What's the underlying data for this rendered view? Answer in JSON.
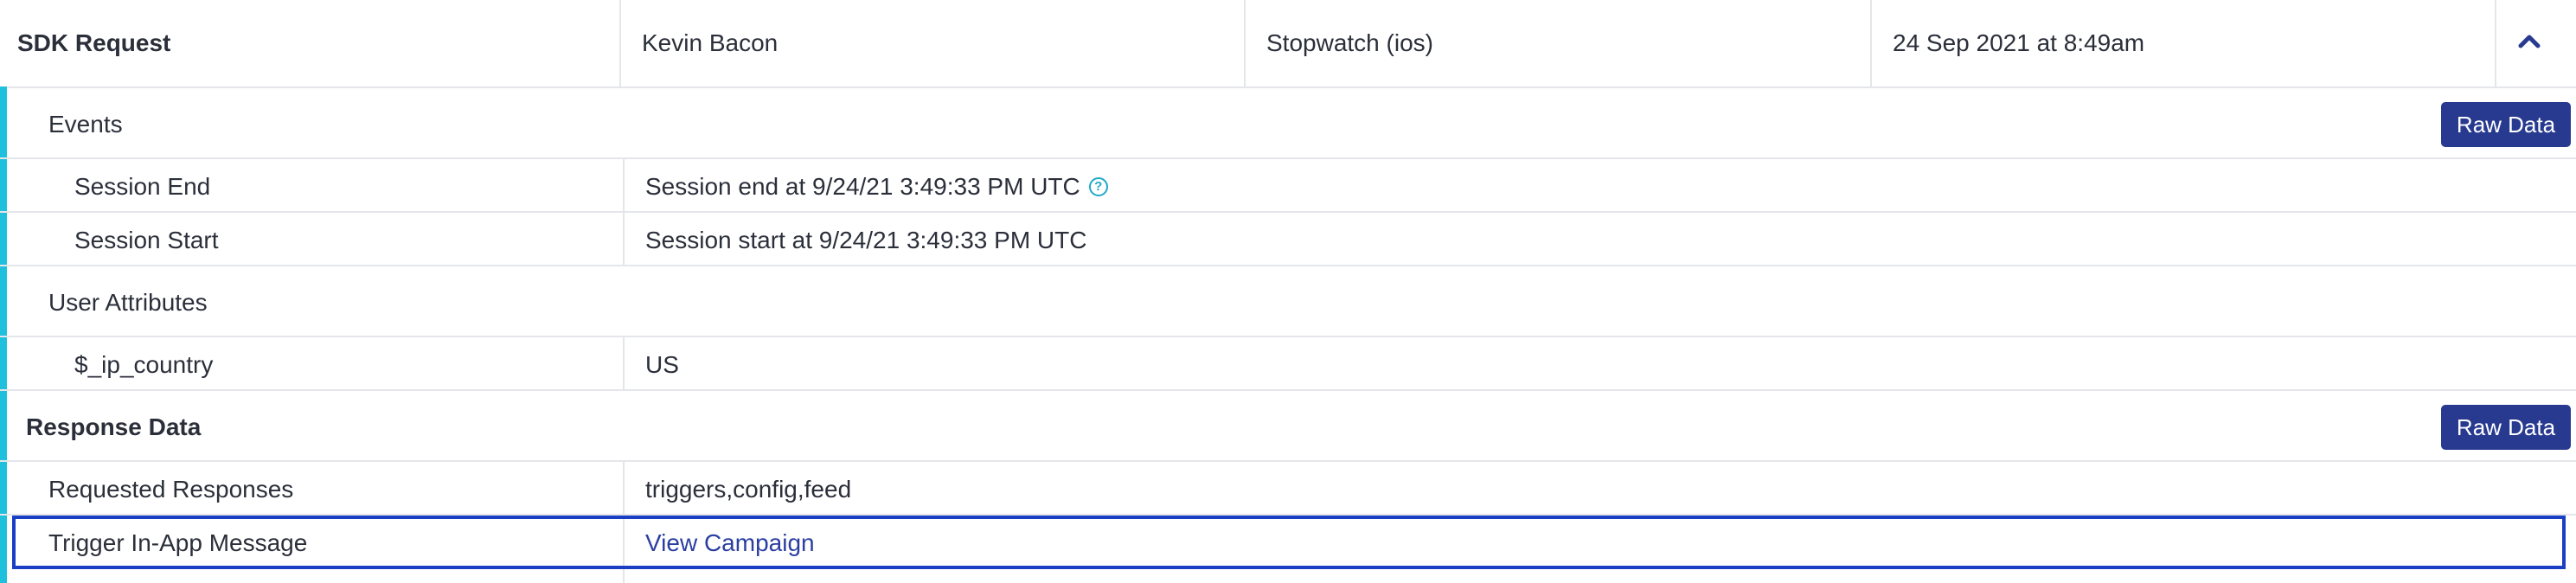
{
  "header": {
    "type": "SDK Request",
    "user": "Kevin Bacon",
    "app": "Stopwatch (ios)",
    "date": "24 Sep 2021 at 8:49am",
    "collapse_icon": "chevron-up-icon"
  },
  "events": {
    "title": "Events",
    "raw_button": "Raw Data",
    "items": [
      {
        "label": "Session End",
        "value": "Session end at 9/24/21 3:49:33 PM UTC",
        "help_icon": "question-circle-icon"
      },
      {
        "label": "Session Start",
        "value": "Session start at 9/24/21 3:49:33 PM UTC"
      }
    ]
  },
  "user_attributes": {
    "title": "User Attributes",
    "items": [
      {
        "label": "$_ip_country",
        "value": "US"
      }
    ]
  },
  "response": {
    "title": "Response Data",
    "raw_button": "Raw Data",
    "requested_label": "Requested Responses",
    "requested_value": "triggers,config,feed",
    "trigger_label": "Trigger In-App Message",
    "trigger_link": "View Campaign"
  },
  "colors": {
    "accent": "#1fc0db",
    "button": "#283a8f",
    "highlight": "#1a3fc4",
    "link": "#2b3fa1"
  }
}
